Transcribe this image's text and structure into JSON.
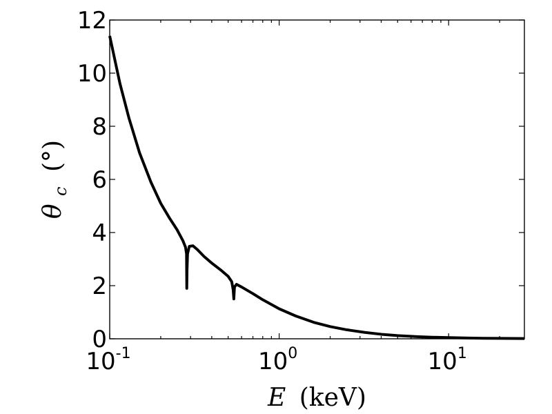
{
  "chart_data": {
    "type": "line",
    "title": "",
    "xlabel": {
      "symbol": "E",
      "unit": "(keV)"
    },
    "ylabel": {
      "symbol": "θ",
      "subscript": "c",
      "unit": "(°)"
    },
    "xscale": "log",
    "xlim": [
      0.1,
      28
    ],
    "ylim": [
      0,
      12
    ],
    "grid": false,
    "x_ticks": [
      {
        "value": 0.1,
        "base": "10",
        "exp": "-1"
      },
      {
        "value": 1,
        "base": "10",
        "exp": "0"
      },
      {
        "value": 10,
        "base": "10",
        "exp": "1"
      }
    ],
    "y_ticks": [
      "0",
      "2",
      "4",
      "6",
      "8",
      "10",
      "12"
    ],
    "series": [
      {
        "color": "#000000",
        "x": [
          0.1,
          0.115,
          0.13,
          0.15,
          0.175,
          0.2,
          0.225,
          0.25,
          0.27,
          0.28,
          0.284,
          0.285,
          0.286,
          0.288,
          0.295,
          0.31,
          0.33,
          0.36,
          0.4,
          0.45,
          0.5,
          0.525,
          0.535,
          0.54,
          0.545,
          0.56,
          0.6,
          0.7,
          0.8,
          1.0,
          1.25,
          1.6,
          2.0,
          2.5,
          3.2,
          4.0,
          5.0,
          6.5,
          8.0,
          10.0,
          13.0,
          16.0,
          20.0,
          28.0
        ],
        "y": [
          11.4,
          9.6,
          8.3,
          7.0,
          5.9,
          5.1,
          4.55,
          4.1,
          3.7,
          3.45,
          3.2,
          1.9,
          2.6,
          3.2,
          3.48,
          3.5,
          3.35,
          3.1,
          2.85,
          2.6,
          2.35,
          2.15,
          1.85,
          1.5,
          1.95,
          2.05,
          1.95,
          1.7,
          1.47,
          1.13,
          0.86,
          0.62,
          0.46,
          0.34,
          0.24,
          0.17,
          0.12,
          0.08,
          0.06,
          0.045,
          0.03,
          0.02,
          0.015,
          0.01
        ]
      }
    ]
  }
}
